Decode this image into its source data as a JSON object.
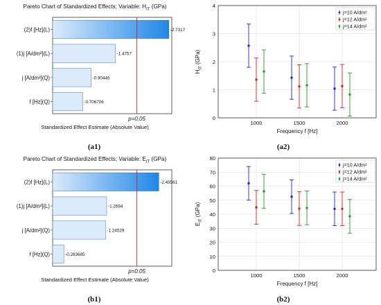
{
  "captions": {
    "a1": "(a1)",
    "a2": "(a2)",
    "b1": "(b1)",
    "b2": "(b2)"
  },
  "colors": {
    "bar_light": "#dcebfb",
    "bar_dark": "#1f86e8",
    "bar_stroke": "#3a6fa8",
    "ref_line": "#c8242b",
    "series": [
      "#2323c8",
      "#d42323",
      "#1f9b2a"
    ]
  },
  "chart_data": [
    {
      "id": "a1",
      "type": "bar",
      "orientation": "horizontal",
      "title": "Pareto Chart of Standardized Effects; Variable: H",
      "title_sub": "IT",
      "title_suffix": " (GPa)",
      "categories": [
        "(2)f [Hz](L)",
        "(1)j [A/dm²](L)",
        "j [A/dm²](Q)",
        "f [Hz](Q)"
      ],
      "values": [
        2.7317,
        1.4757,
        0.90446,
        0.706706
      ],
      "value_labels": [
        "-2.7317",
        "-1.4757",
        "-0.90446",
        "-0.706706"
      ],
      "xlim": [
        0,
        2.8
      ],
      "ref_value": 1.98,
      "ref_label": "p=0.05",
      "xlabel": "Standardized Effect Estimate (Absolute Value)",
      "grid": false
    },
    {
      "id": "a2",
      "type": "scatter",
      "subtype": "errorbar",
      "ylabel": "H",
      "ylabel_sub": "IT",
      "ylabel_suffix": " (GPa)",
      "xlabel": "Frequency f [Hz]",
      "x": [
        1000,
        1500,
        2000
      ],
      "x_ticks": [
        "1000",
        "1500",
        "2000"
      ],
      "ylim": [
        0,
        4
      ],
      "y_ticks": [
        "0",
        "1",
        "2",
        "3",
        "4"
      ],
      "grid": true,
      "legend_position": "top-right",
      "series": [
        {
          "name": "j=10 A/dm²",
          "mean": [
            2.57,
            1.43,
            1.04
          ],
          "low": [
            1.8,
            0.66,
            0.27
          ],
          "high": [
            3.34,
            2.2,
            1.81
          ]
        },
        {
          "name": "j=12 A/dm²",
          "mean": [
            1.36,
            1.12,
            1.13
          ],
          "low": [
            0.59,
            0.35,
            0.36
          ],
          "high": [
            2.13,
            1.89,
            1.9
          ]
        },
        {
          "name": "j=14 A/dm²",
          "mean": [
            1.65,
            1.16,
            0.83
          ],
          "low": [
            0.88,
            0.39,
            0.06
          ],
          "high": [
            2.42,
            1.93,
            1.6
          ]
        }
      ]
    },
    {
      "id": "b1",
      "type": "bar",
      "orientation": "horizontal",
      "title": "Pareto Chart of Standardized Effects; Variable: E",
      "title_sub": "IT",
      "title_suffix": " (GPa)",
      "categories": [
        "(2)f [Hz](L)",
        "(1)j [A/dm²](L)",
        "j [A/dm²](Q)",
        "f [Hz](Q)"
      ],
      "values": [
        2.49561,
        1.2694,
        1.24529,
        0.263685
      ],
      "value_labels": [
        "-2.49561",
        "-1.2694",
        "-1.24529",
        "-0.263685"
      ],
      "xlim": [
        0,
        2.8
      ],
      "ref_value": 1.98,
      "ref_label": "p=0.05",
      "xlabel": "Standardized Effect Estimate (Absolute Value)",
      "grid": false
    },
    {
      "id": "b2",
      "type": "scatter",
      "subtype": "errorbar",
      "ylabel": "E",
      "ylabel_sub": "IT",
      "ylabel_suffix": " (GPa)",
      "xlabel": "Frequency f [Hz]",
      "x": [
        1000,
        1500,
        2000
      ],
      "x_ticks": [
        "1000",
        "1500",
        "2000"
      ],
      "ylim": [
        0,
        80
      ],
      "y_ticks": [
        "0",
        "10",
        "20",
        "30",
        "40",
        "50",
        "60",
        "70",
        "80"
      ],
      "grid": true,
      "legend_position": "top-right",
      "series": [
        {
          "name": "j=10 A/dm²",
          "mean": [
            62.0,
            52.5,
            43.8
          ],
          "low": [
            50.0,
            40.5,
            31.8
          ],
          "high": [
            74.0,
            64.5,
            55.8
          ]
        },
        {
          "name": "j=12 A/dm²",
          "mean": [
            44.9,
            44.0,
            43.8
          ],
          "low": [
            32.9,
            32.0,
            31.8
          ],
          "high": [
            56.9,
            56.0,
            55.8
          ]
        },
        {
          "name": "j=14 A/dm²",
          "mean": [
            56.3,
            44.5,
            38.5
          ],
          "low": [
            44.3,
            32.5,
            26.5
          ],
          "high": [
            68.3,
            56.5,
            50.5
          ]
        }
      ]
    }
  ]
}
